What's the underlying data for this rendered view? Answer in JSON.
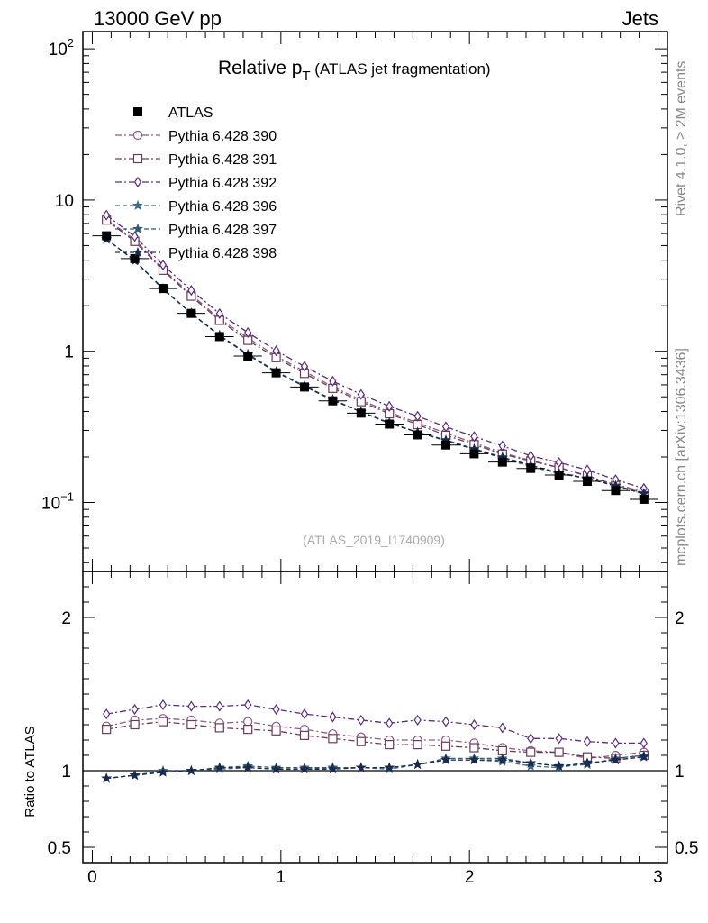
{
  "header": {
    "left": "13000 GeV pp",
    "right": "Jets"
  },
  "side_labels": {
    "upper": "Rivet 4.1.0, ≥ 2M events",
    "lower": "mcplots.cern.ch [arXiv:1306.3436]"
  },
  "chart_data": {
    "type": "line",
    "title_main": "Relative p",
    "title_sub": "T",
    "title_rest": " (ATLAS jet fragmentation)",
    "analysis_tag": "(ATLAS_2019_I1740909)",
    "xlabel": "",
    "ylabel_ratio": "Ratio to ATLAS",
    "xlim": [
      -0.05,
      3.05
    ],
    "ylim_main": [
      0.035,
      130
    ],
    "ylim_ratio": [
      0.4,
      2.3
    ],
    "y_scale_main": "log",
    "x_ticks": [
      "0",
      "1",
      "2",
      "3"
    ],
    "main_y_ticks": [
      {
        "base": "10",
        "exp": "−1"
      },
      {
        "base": "1",
        "exp": ""
      },
      {
        "base": "10",
        "exp": ""
      },
      {
        "base": "10",
        "exp": "2"
      }
    ],
    "ratio_y_ticks": [
      "0.5",
      "1",
      "2"
    ],
    "x": [
      0.075,
      0.225,
      0.375,
      0.525,
      0.675,
      0.825,
      0.975,
      1.125,
      1.275,
      1.425,
      1.575,
      1.725,
      1.875,
      2.025,
      2.175,
      2.325,
      2.475,
      2.625,
      2.775,
      2.925
    ],
    "data": {
      "name": "ATLAS",
      "values": [
        5.8,
        4.1,
        2.6,
        1.78,
        1.25,
        0.93,
        0.72,
        0.58,
        0.47,
        0.39,
        0.33,
        0.28,
        0.24,
        0.21,
        0.185,
        0.168,
        0.152,
        0.138,
        0.12,
        0.105
      ]
    },
    "series": [
      {
        "name": "Pythia 6.428 390",
        "color": "#8e5a82",
        "marker": "circle",
        "dash": "dashdot",
        "ratio": [
          1.29,
          1.33,
          1.34,
          1.33,
          1.31,
          1.32,
          1.29,
          1.27,
          1.24,
          1.22,
          1.2,
          1.2,
          1.2,
          1.18,
          1.15,
          1.13,
          1.12,
          1.08,
          1.1,
          1.12
        ]
      },
      {
        "name": "Pythia 6.428 391",
        "color": "#6e3a56",
        "marker": "square",
        "dash": "dashdot",
        "ratio": [
          1.27,
          1.3,
          1.32,
          1.3,
          1.28,
          1.27,
          1.26,
          1.23,
          1.21,
          1.19,
          1.17,
          1.17,
          1.16,
          1.15,
          1.13,
          1.12,
          1.12,
          1.09,
          1.08,
          1.1
        ]
      },
      {
        "name": "Pythia 6.428 392",
        "color": "#5a2a7e",
        "marker": "diamond",
        "dash": "dashdot",
        "ratio": [
          1.37,
          1.4,
          1.43,
          1.42,
          1.42,
          1.43,
          1.4,
          1.37,
          1.35,
          1.33,
          1.31,
          1.33,
          1.32,
          1.3,
          1.28,
          1.21,
          1.21,
          1.19,
          1.18,
          1.18
        ]
      },
      {
        "name": "Pythia 6.428 396",
        "color": "#3e6b8a",
        "marker": "star",
        "dash": "dash",
        "ratio": [
          0.95,
          0.97,
          1.0,
          1.0,
          1.01,
          1.02,
          1.01,
          1.01,
          1.02,
          1.02,
          1.01,
          1.04,
          1.07,
          1.07,
          1.06,
          1.03,
          1.02,
          1.05,
          1.07,
          1.09
        ]
      },
      {
        "name": "Pythia 6.428 397",
        "color": "#2e5a72",
        "marker": "star",
        "dash": "dash",
        "ratio": [
          0.95,
          0.97,
          0.99,
          1.0,
          1.02,
          1.03,
          1.02,
          1.02,
          1.02,
          1.02,
          1.02,
          1.04,
          1.08,
          1.08,
          1.08,
          1.05,
          1.03,
          1.04,
          1.08,
          1.1
        ]
      },
      {
        "name": "Pythia 6.428 398",
        "color": "#1a2a4e",
        "marker": "star",
        "dash": "dash",
        "ratio": [
          0.95,
          0.97,
          0.99,
          1.0,
          1.02,
          1.02,
          1.01,
          1.01,
          1.01,
          1.02,
          1.02,
          1.04,
          1.07,
          1.07,
          1.07,
          1.05,
          1.03,
          1.05,
          1.07,
          1.09
        ]
      }
    ]
  }
}
